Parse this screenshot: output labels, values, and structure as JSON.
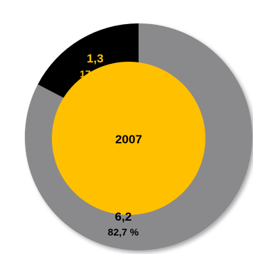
{
  "chart_data": {
    "type": "pie",
    "title": "",
    "center_label": "2007",
    "slices": [
      {
        "value": 6.2,
        "value_label": "6,2",
        "percent": 82.7,
        "percent_label": "82,7 %",
        "color": "#8a8a8c",
        "label_color": "#000000"
      },
      {
        "value": 1.3,
        "value_label": "1,3",
        "percent": 17.3,
        "percent_label": "17,3 %",
        "color": "#000000",
        "label_color": "#ffc000"
      }
    ],
    "center_color": "#ffc000",
    "center_text_color": "#000000",
    "start_angle_deg": 0,
    "direction": "clockwise"
  }
}
